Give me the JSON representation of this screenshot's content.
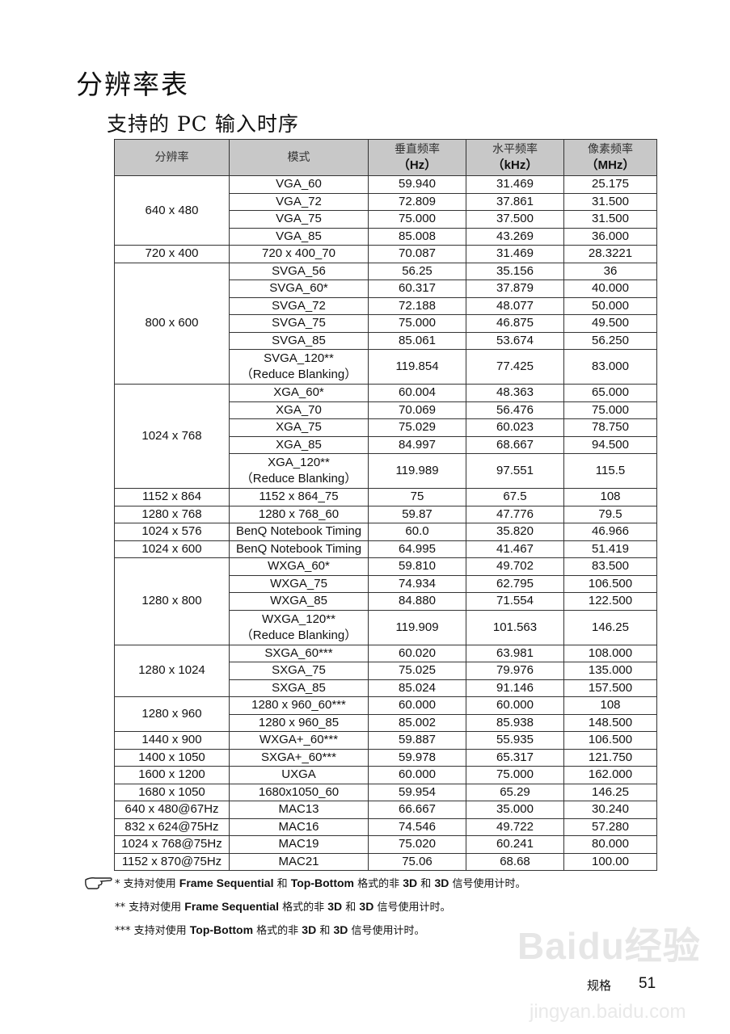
{
  "title": "分辨率表",
  "subtitle": "支持的 PC 输入时序",
  "table": {
    "headers": [
      {
        "label": "分辨率",
        "unit": ""
      },
      {
        "label": "模式",
        "unit": ""
      },
      {
        "label": "垂直频率",
        "unit": "（Hz）"
      },
      {
        "label": "水平频率",
        "unit": "（kHz）"
      },
      {
        "label": "像素频率",
        "unit": "（MHz）"
      }
    ],
    "groups": [
      {
        "resolution": "640 x 480",
        "rows": [
          [
            "VGA_60",
            "59.940",
            "31.469",
            "25.175"
          ],
          [
            "VGA_72",
            "72.809",
            "37.861",
            "31.500"
          ],
          [
            "VGA_75",
            "75.000",
            "37.500",
            "31.500"
          ],
          [
            "VGA_85",
            "85.008",
            "43.269",
            "36.000"
          ]
        ]
      },
      {
        "resolution": "720 x 400",
        "rows": [
          [
            "720 x 400_70",
            "70.087",
            "31.469",
            "28.3221"
          ]
        ]
      },
      {
        "resolution": "800 x 600",
        "rows": [
          [
            "SVGA_56",
            "56.25",
            "35.156",
            "36"
          ],
          [
            "SVGA_60*",
            "60.317",
            "37.879",
            "40.000"
          ],
          [
            "SVGA_72",
            "72.188",
            "48.077",
            "50.000"
          ],
          [
            "SVGA_75",
            "75.000",
            "46.875",
            "49.500"
          ],
          [
            "SVGA_85",
            "85.061",
            "53.674",
            "56.250"
          ],
          [
            "SVGA_120**\n（Reduce Blanking）",
            "119.854",
            "77.425",
            "83.000"
          ]
        ]
      },
      {
        "resolution": "1024 x 768",
        "rows": [
          [
            "XGA_60*",
            "60.004",
            "48.363",
            "65.000"
          ],
          [
            "XGA_70",
            "70.069",
            "56.476",
            "75.000"
          ],
          [
            "XGA_75",
            "75.029",
            "60.023",
            "78.750"
          ],
          [
            "XGA_85",
            "84.997",
            "68.667",
            "94.500"
          ],
          [
            "XGA_120**\n（Reduce Blanking）",
            "119.989",
            "97.551",
            "115.5"
          ]
        ]
      },
      {
        "resolution": "1152 x 864",
        "rows": [
          [
            "1152 x 864_75",
            "75",
            "67.5",
            "108"
          ]
        ]
      },
      {
        "resolution": "1280 x 768",
        "rows": [
          [
            "1280 x 768_60",
            "59.87",
            "47.776",
            "79.5"
          ]
        ]
      },
      {
        "resolution": "1024 x 576",
        "rows": [
          [
            "BenQ Notebook Timing",
            "60.0",
            "35.820",
            "46.966"
          ]
        ]
      },
      {
        "resolution": "1024 x 600",
        "rows": [
          [
            "BenQ Notebook Timing",
            "64.995",
            "41.467",
            "51.419"
          ]
        ]
      },
      {
        "resolution": "1280 x 800",
        "rows": [
          [
            "WXGA_60*",
            "59.810",
            "49.702",
            "83.500"
          ],
          [
            "WXGA_75",
            "74.934",
            "62.795",
            "106.500"
          ],
          [
            "WXGA_85",
            "84.880",
            "71.554",
            "122.500"
          ],
          [
            "WXGA_120**\n（Reduce Blanking）",
            "119.909",
            "101.563",
            "146.25"
          ]
        ]
      },
      {
        "resolution": "1280 x 1024",
        "rows": [
          [
            "SXGA_60***",
            "60.020",
            "63.981",
            "108.000"
          ],
          [
            "SXGA_75",
            "75.025",
            "79.976",
            "135.000"
          ],
          [
            "SXGA_85",
            "85.024",
            "91.146",
            "157.500"
          ]
        ]
      },
      {
        "resolution": "1280 x 960",
        "rows": [
          [
            "1280 x 960_60***",
            "60.000",
            "60.000",
            "108"
          ],
          [
            "1280 x 960_85",
            "85.002",
            "85.938",
            "148.500"
          ]
        ]
      },
      {
        "resolution": "1440 x 900",
        "rows": [
          [
            "WXGA+_60***",
            "59.887",
            "55.935",
            "106.500"
          ]
        ]
      },
      {
        "resolution": "1400 x 1050",
        "rows": [
          [
            "SXGA+_60***",
            "59.978",
            "65.317",
            "121.750"
          ]
        ]
      },
      {
        "resolution": "1600 x 1200",
        "rows": [
          [
            "UXGA",
            "60.000",
            "75.000",
            "162.000"
          ]
        ]
      },
      {
        "resolution": "1680 x 1050",
        "rows": [
          [
            "1680x1050_60",
            "59.954",
            "65.29",
            "146.25"
          ]
        ]
      },
      {
        "resolution": "640 x 480@67Hz",
        "rows": [
          [
            "MAC13",
            "66.667",
            "35.000",
            "30.240"
          ]
        ]
      },
      {
        "resolution": "832 x 624@75Hz",
        "rows": [
          [
            "MAC16",
            "74.546",
            "49.722",
            "57.280"
          ]
        ]
      },
      {
        "resolution": "1024 x 768@75Hz",
        "rows": [
          [
            "MAC19",
            "75.020",
            "60.241",
            "80.000"
          ]
        ]
      },
      {
        "resolution": "1152 x 870@75Hz",
        "rows": [
          [
            "MAC21",
            "75.06",
            "68.68",
            "100.00"
          ]
        ]
      }
    ]
  },
  "notes": [
    [
      {
        "t": "* 支持对使用 "
      },
      {
        "t": "Frame Sequential",
        "b": true
      },
      {
        "t": " 和 "
      },
      {
        "t": "Top-Bottom",
        "b": true
      },
      {
        "t": " 格式的非 "
      },
      {
        "t": "3D",
        "b": true
      },
      {
        "t": " 和 "
      },
      {
        "t": "3D",
        "b": true
      },
      {
        "t": " 信号使用计时。"
      }
    ],
    [
      {
        "t": "** 支持对使用 "
      },
      {
        "t": "Frame Sequential",
        "b": true
      },
      {
        "t": " 格式的非 "
      },
      {
        "t": "3D",
        "b": true
      },
      {
        "t": " 和 "
      },
      {
        "t": "3D",
        "b": true
      },
      {
        "t": " 信号使用计时。"
      }
    ],
    [
      {
        "t": "*** 支持对使用 "
      },
      {
        "t": "Top-Bottom",
        "b": true
      },
      {
        "t": " 格式的非 "
      },
      {
        "t": "3D",
        "b": true
      },
      {
        "t": " 和 "
      },
      {
        "t": "3D",
        "b": true
      },
      {
        "t": " 信号使用计时。"
      }
    ]
  ],
  "note_icon": "pointing-hand-icon",
  "watermark": {
    "brand": "Baidu经验",
    "url": "jingyan.baidu.com"
  },
  "footer": {
    "section": "规格",
    "page": "51"
  }
}
